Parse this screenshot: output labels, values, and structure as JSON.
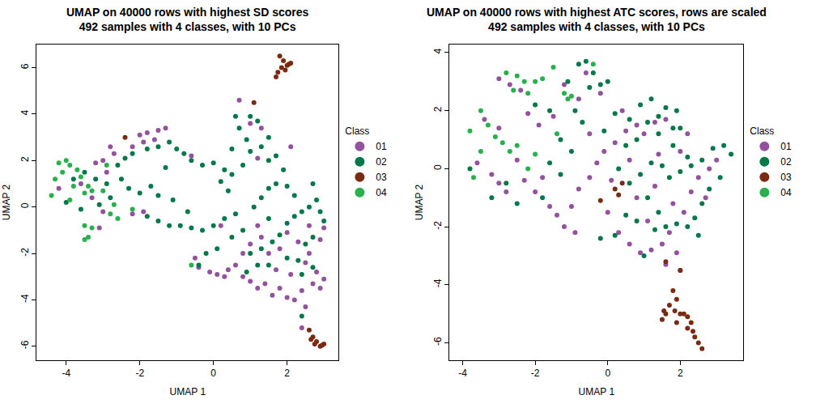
{
  "chart_data": [
    {
      "type": "scatter",
      "title": "UMAP on 40000 rows with highest SD scores\n492 samples with 4 classes, with 10 PCs",
      "x_label": "UMAP 1",
      "y_label": "UMAP 2",
      "xlim": [
        -4.8,
        3.4
      ],
      "ylim": [
        -6.6,
        7.0
      ],
      "xticks": [
        -4,
        -2,
        0,
        2
      ],
      "yticks": [
        -6,
        -4,
        -2,
        0,
        2,
        4,
        6
      ],
      "grid": false,
      "legend": "right",
      "legend_title": "Class",
      "marker": "circle",
      "series": [
        {
          "name": "01",
          "color": "#93529e",
          "x": [
            -2.0,
            -1.8,
            -1.5,
            -1.3,
            -1.6,
            -1.9,
            -2.2,
            -2.8,
            -2.7,
            -3.0,
            -3.2,
            -2.9,
            -3.6,
            -3.3,
            -4.2,
            -3.1,
            -3.0,
            -2.2,
            -1.9,
            -0.5,
            -0.4,
            -0.1,
            0.1,
            0.3,
            0.4,
            0.6,
            0.8,
            1.0,
            1.2,
            1.4,
            1.6,
            1.8,
            2.0,
            2.2,
            2.4,
            2.5,
            2.7,
            2.9,
            3.0,
            2.8,
            2.5,
            2.3,
            2.0,
            1.8,
            1.5,
            1.3,
            1.0,
            1.2,
            2.6,
            2.9,
            3.0,
            2.4,
            0.7,
            1.0,
            1.3,
            1.2,
            2.1,
            2.6,
            0.2,
            0.8,
            -0.6,
            1.7,
            2.1
          ],
          "y": [
            3.1,
            3.2,
            3.3,
            3.4,
            2.9,
            2.8,
            2.6,
            2.6,
            2.3,
            2.0,
            1.9,
            1.5,
            1.0,
            0.4,
            0.8,
            -0.9,
            -0.2,
            -0.3,
            -0.2,
            -2.2,
            -2.6,
            -2.8,
            -2.9,
            -3.0,
            -2.7,
            -2.5,
            -3.0,
            -3.2,
            -3.5,
            -3.3,
            -3.8,
            -3.5,
            -3.9,
            -4.0,
            -3.6,
            -4.3,
            -3.3,
            -3.5,
            -3.1,
            -2.8,
            -2.4,
            -1.5,
            -1.1,
            -1.8,
            -2.0,
            -1.3,
            -1.6,
            -0.8,
            -0.8,
            -1.4,
            -0.9,
            -5.2,
            4.6,
            3.6,
            3.4,
            2.1,
            2.6,
            -2.0,
            -0.8,
            -2.0,
            2.2,
            -2.7,
            -2.9
          ]
        },
        {
          "name": "02",
          "color": "#00784a",
          "x": [
            -3.8,
            -3.5,
            -3.2,
            -2.9,
            -2.6,
            -2.4,
            -2.2,
            -1.8,
            -1.5,
            -1.2,
            -1.0,
            -0.8,
            -0.6,
            -0.3,
            0,
            0.3,
            0.5,
            0.2,
            0.4,
            -2.5,
            -2.3,
            -2.0,
            -1.7,
            -1.5,
            -1.8,
            -1.5,
            -1.2,
            -0.9,
            -0.6,
            -0.3,
            0,
            0.3,
            0.6,
            -0.2,
            -0.4,
            0.5,
            0.8,
            1.0,
            1.3,
            1.6,
            1.8,
            2.0,
            2.2,
            2.4,
            2.6,
            2.8,
            2.9,
            3.0,
            2.7,
            2.5,
            2.3,
            2.0,
            1.5,
            1.2,
            0.9,
            1.1,
            1.3,
            1.5,
            1.7,
            1.9,
            2.0,
            2.2,
            1.7,
            1.5,
            1.3,
            1.5,
            1.2,
            1.0,
            0.6,
            0.7,
            0.9,
            1.0,
            0.8,
            1.5,
            2.4,
            2.7,
            -2.8,
            -3.1,
            -3.6,
            -4.0,
            -1.1,
            -0.7,
            0.1,
            -1.3,
            0.5,
            2.7,
            2.4
          ],
          "y": [
            1.2,
            1.5,
            1.2,
            1.0,
            1.8,
            2.1,
            2.3,
            2.5,
            2.6,
            2.8,
            2.5,
            2.3,
            2.0,
            1.8,
            1.9,
            1.6,
            1.4,
            1.1,
            0.7,
            1.2,
            0.8,
            0.6,
            0.9,
            0.5,
            -0.4,
            -0.6,
            -0.8,
            -0.8,
            -0.9,
            -1.0,
            -0.8,
            -0.5,
            -0.3,
            -2.0,
            -2.5,
            -1.3,
            -1.0,
            -2.0,
            -1.8,
            -1.5,
            -1.2,
            -0.7,
            -0.4,
            -0.2,
            0.0,
            0.3,
            -0.2,
            -0.6,
            -1.3,
            -1.6,
            -2.3,
            -2.2,
            -2.5,
            -2.5,
            -2.8,
            0.0,
            0.4,
            0.8,
            1.0,
            1.6,
            0.9,
            0.5,
            2.2,
            2.0,
            2.6,
            3.0,
            3.7,
            3.9,
            3.9,
            3.4,
            2.9,
            2.4,
            1.8,
            -0.5,
            -2.9,
            -2.6,
            0.4,
            0.1,
            -0.1,
            0.2,
            0.3,
            -0.2,
            -1.8,
            1.7,
            2.5,
            1.0,
            -4.7
          ]
        },
        {
          "name": "03",
          "color": "#7b2a12",
          "x": [
            1.8,
            1.9,
            2.0,
            1.85,
            2.1,
            1.75,
            1.95,
            1.7,
            2.05,
            2.6,
            2.7,
            2.8,
            2.9,
            2.75,
            2.95,
            2.65,
            3.0,
            1.1,
            -2.4
          ],
          "y": [
            6.5,
            6.3,
            6.1,
            6.0,
            6.2,
            5.8,
            5.9,
            5.6,
            6.15,
            -5.3,
            -5.6,
            -5.8,
            -6.0,
            -5.9,
            -5.95,
            -5.7,
            -5.9,
            4.5,
            3.0
          ]
        },
        {
          "name": "04",
          "color": "#27b04c",
          "x": [
            -4.2,
            -4.0,
            -3.9,
            -4.1,
            -4.3,
            -3.7,
            -3.6,
            -3.8,
            -3.5,
            -3.3,
            -3.4,
            -3.5,
            -3.3,
            -3.5,
            -3.4,
            -2.8,
            -2.6,
            -2.2,
            -2.7,
            -2.9,
            -4.4,
            -3.9,
            -0.6,
            -3.0
          ],
          "y": [
            1.9,
            2.0,
            1.8,
            1.5,
            1.2,
            1.6,
            1.3,
            0.9,
            0.6,
            0.7,
            0.9,
            -0.8,
            -0.9,
            -1.4,
            -1.3,
            -0.3,
            -0.5,
            -0.1,
            0.1,
            1.8,
            0.5,
            0.3,
            -2.5,
            0.7
          ]
        }
      ]
    },
    {
      "type": "scatter",
      "title": "UMAP on 40000 rows with highest ATC scores, rows are scaled\n492 samples with 4 classes, with 10 PCs",
      "x_label": "UMAP 1",
      "y_label": "UMAP 2",
      "xlim": [
        -4.36,
        3.74
      ],
      "ylim": [
        -6.6,
        4.28
      ],
      "xticks": [
        -4,
        -2,
        0,
        2
      ],
      "yticks": [
        -6,
        -4,
        -2,
        0,
        2,
        4
      ],
      "grid": false,
      "legend": "right",
      "legend_title": "Class",
      "marker": "circle",
      "series": [
        {
          "name": "01",
          "color": "#93529e",
          "x": [
            -3.0,
            -2.7,
            -2.4,
            -3.4,
            -3.0,
            -3.6,
            -3.2,
            -3.0,
            -2.8,
            -2.5,
            -2.3,
            -2.0,
            -1.8,
            -1.6,
            -1.4,
            -1.2,
            -1.0,
            -0.8,
            -0.5,
            -0.3,
            -0.1,
            0.2,
            0.5,
            0.8,
            1.0,
            1.3,
            1.6,
            -1.5,
            -1.2,
            -0.8,
            -0.5,
            -1.9,
            0.0,
            0.3,
            0.6,
            0.9,
            1.2,
            1.5,
            1.7,
            1.9,
            2.0,
            1.6,
            1.1,
            0.8,
            1.3,
            1.8,
            2.1,
            2.3,
            2.5,
            2.8,
            3.0,
            2.7,
            0.1,
            0.6,
            -0.6,
            -0.2,
            -2.2,
            -0.9,
            1.4,
            2.0,
            2.2,
            0.4
          ],
          "y": [
            3.1,
            2.9,
            2.7,
            1.7,
            1.4,
            0.2,
            -0.2,
            -0.5,
            -0.8,
            0.3,
            -0.4,
            -0.8,
            -0.3,
            -1.3,
            -1.6,
            -2.0,
            -1.3,
            -0.7,
            -0.3,
            0.2,
            0.6,
            0.9,
            1.3,
            1.5,
            1.2,
            1.6,
            1.7,
            1.8,
            2.9,
            2.4,
            1.2,
            1.5,
            -1.5,
            -2.2,
            -2.6,
            -2.9,
            -2.8,
            -2.6,
            -2.2,
            -2.9,
            -3.5,
            -3.3,
            -1.8,
            -1.0,
            -0.6,
            -1.2,
            -1.5,
            -0.8,
            -0.3,
            0.0,
            0.3,
            -1.0,
            -0.4,
            0.3,
            3.3,
            2.6,
            1.9,
            -2.2,
            0.5,
            0.6,
            1.2,
            2.0
          ]
        },
        {
          "name": "02",
          "color": "#00784a",
          "x": [
            -1.1,
            -0.8,
            -0.6,
            -0.4,
            -0.2,
            0.0,
            -0.5,
            -0.9,
            -0.7,
            -1.3,
            -1.0,
            -1.6,
            -1.3,
            -1.8,
            -2.5,
            -3.2,
            -3.8,
            -2.8,
            0.3,
            0.6,
            0.9,
            1.2,
            1.5,
            1.7,
            2.0,
            2.3,
            2.6,
            2.9,
            3.2,
            3.4,
            3.1,
            2.8,
            2.6,
            2.4,
            2.2,
            1.9,
            1.6,
            1.4,
            1.1,
            0.8,
            0.5,
            0.2,
            -0.2,
            0.5,
            0.8,
            1.1,
            1.4,
            1.8,
            2.0,
            1.6,
            1.4,
            1.2,
            0.9,
            0.6,
            1.9,
            1.8,
            2.2,
            2.5,
            1.0,
            1.3,
            -0.1,
            0.2,
            -1.6,
            -2.0
          ],
          "y": [
            3.0,
            3.6,
            3.7,
            3.3,
            2.9,
            3.0,
            2.8,
            2.0,
            1.6,
            1.0,
            0.6,
            0.2,
            -0.2,
            -1.0,
            -1.2,
            -1.0,
            0.0,
            -0.5,
            0.0,
            -0.5,
            -0.2,
            0.2,
            0.1,
            -0.3,
            -0.1,
            0.1,
            0.3,
            0.7,
            0.8,
            0.5,
            -0.3,
            -0.7,
            -1.2,
            -1.7,
            -2.0,
            -1.9,
            -2.0,
            -1.5,
            -1.0,
            -1.8,
            -1.6,
            -2.3,
            -2.4,
            0.8,
            1.0,
            1.6,
            1.2,
            0.8,
            1.4,
            2.1,
            1.8,
            2.4,
            2.2,
            1.7,
            2.0,
            1.4,
            0.4,
            -2.3,
            -3.0,
            -2.1,
            1.3,
            1.9,
            2.0,
            2.2
          ]
        },
        {
          "name": "03",
          "color": "#7b2a12",
          "x": [
            1.8,
            1.9,
            1.7,
            1.85,
            1.6,
            1.5,
            1.9,
            2.1,
            2.2,
            2.3,
            2.35,
            2.4,
            2.5,
            2.6,
            2.0,
            1.55,
            2.2,
            0.3,
            0.4,
            0.2,
            -0.2,
            1.6,
            2.0
          ],
          "y": [
            -4.2,
            -4.5,
            -4.7,
            -4.9,
            -5.0,
            -5.2,
            -5.3,
            -5.0,
            -5.1,
            -5.3,
            -5.6,
            -5.8,
            -6.0,
            -6.2,
            -5.0,
            -4.9,
            -5.5,
            -0.9,
            -0.5,
            -0.7,
            -1.1,
            -3.2,
            -3.5
          ]
        },
        {
          "name": "04",
          "color": "#27b04c",
          "x": [
            -2.8,
            -2.5,
            -2.3,
            -2.0,
            -1.8,
            -2.6,
            -2.2,
            -1.2,
            -1.1,
            -1.0,
            -3.5,
            -3.3,
            -3.1,
            -2.9,
            -2.7,
            -2.5,
            -3.5,
            -2.2,
            -1.4,
            -1.5,
            -0.4,
            -3.8,
            -2.0,
            -3.7
          ],
          "y": [
            3.3,
            3.2,
            3.0,
            3.0,
            3.1,
            2.7,
            2.6,
            2.6,
            2.4,
            2.5,
            2.0,
            1.5,
            1.1,
            0.9,
            0.6,
            0.8,
            0.6,
            0.0,
            1.2,
            3.5,
            3.6,
            1.3,
            0.5,
            -0.3
          ]
        }
      ]
    }
  ]
}
